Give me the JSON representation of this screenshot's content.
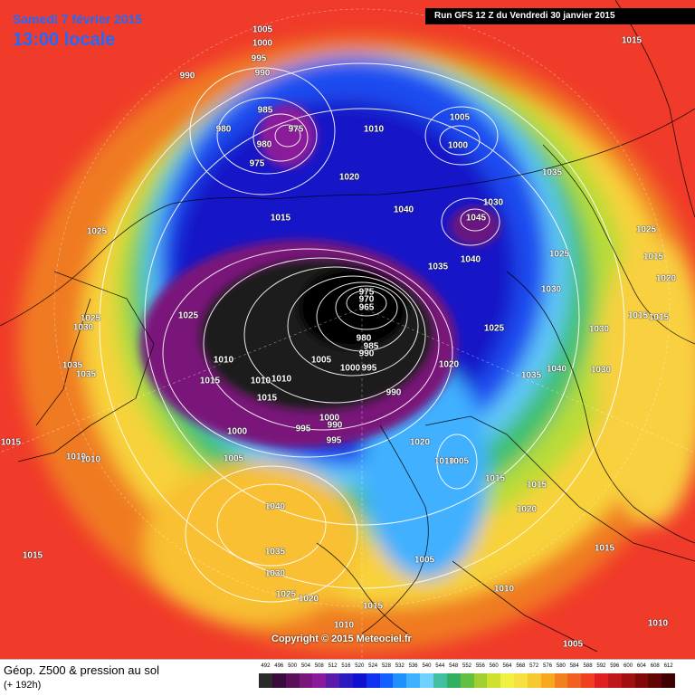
{
  "header": {
    "date": "Samedi 7 février 2015",
    "time": "13:00 locale",
    "run": "Run GFS 12 Z du Vendredi 30 janvier 2015"
  },
  "legend": {
    "title": "Géop. Z500 & pression au sol",
    "subtitle": "(+ 192h)",
    "ticks": [
      "492",
      "496",
      "500",
      "504",
      "508",
      "512",
      "516",
      "520",
      "524",
      "528",
      "532",
      "536",
      "540",
      "544",
      "548",
      "552",
      "556",
      "560",
      "564",
      "568",
      "572",
      "576",
      "580",
      "584",
      "588",
      "592",
      "596",
      "600",
      "604",
      "608",
      "612"
    ],
    "colors": [
      "#2a2a2a",
      "#3a0a3a",
      "#5a0f5a",
      "#7a157a",
      "#8a1a9a",
      "#5b1aa8",
      "#2a1ac0",
      "#1010d0",
      "#1030f0",
      "#1060ff",
      "#2090ff",
      "#40b0ff",
      "#70d0ff",
      "#40c0a0",
      "#30b060",
      "#60c040",
      "#a0d030",
      "#d0e030",
      "#f0f040",
      "#f8e040",
      "#f8c830",
      "#f8a820",
      "#f08020",
      "#f06020",
      "#f04020",
      "#e02020",
      "#c01818",
      "#a01010",
      "#800808",
      "#600404",
      "#400000"
    ]
  },
  "copyright": "Copyright © 2015 Meteociel.fr",
  "pressure_labels": [
    {
      "value": "1005",
      "pos": [
        290,
        33
      ]
    },
    {
      "value": "1000",
      "pos": [
        290,
        48
      ]
    },
    {
      "value": "995",
      "pos": [
        286,
        65
      ]
    },
    {
      "value": "990",
      "pos": [
        207,
        84
      ]
    },
    {
      "value": "990",
      "pos": [
        290,
        81
      ]
    },
    {
      "value": "985",
      "pos": [
        293,
        122
      ]
    },
    {
      "value": "980",
      "pos": [
        247,
        143
      ]
    },
    {
      "value": "975",
      "pos": [
        327,
        143
      ]
    },
    {
      "value": "980",
      "pos": [
        292,
        160
      ]
    },
    {
      "value": "975",
      "pos": [
        284,
        181
      ]
    },
    {
      "value": "1010",
      "pos": [
        413,
        143
      ]
    },
    {
      "value": "1005",
      "pos": [
        508,
        130
      ]
    },
    {
      "value": "1000",
      "pos": [
        506,
        161
      ]
    },
    {
      "value": "1015",
      "pos": [
        698,
        45
      ]
    },
    {
      "value": "1035",
      "pos": [
        610,
        191
      ]
    },
    {
      "value": "1020",
      "pos": [
        386,
        196
      ]
    },
    {
      "value": "1040",
      "pos": [
        446,
        232
      ]
    },
    {
      "value": "1030",
      "pos": [
        545,
        224
      ]
    },
    {
      "value": "1045",
      "pos": [
        526,
        241
      ]
    },
    {
      "value": "1040",
      "pos": [
        520,
        287
      ]
    },
    {
      "value": "1035",
      "pos": [
        484,
        295
      ]
    },
    {
      "value": "1015",
      "pos": [
        310,
        241
      ]
    },
    {
      "value": "1025",
      "pos": [
        107,
        256
      ]
    },
    {
      "value": "1025",
      "pos": [
        618,
        281
      ]
    },
    {
      "value": "1025",
      "pos": [
        714,
        254
      ]
    },
    {
      "value": "1015",
      "pos": [
        722,
        284
      ]
    },
    {
      "value": "1020",
      "pos": [
        736,
        308
      ]
    },
    {
      "value": "1030",
      "pos": [
        609,
        320
      ]
    },
    {
      "value": "975",
      "pos": [
        405,
        323
      ]
    },
    {
      "value": "970",
      "pos": [
        405,
        331
      ]
    },
    {
      "value": "965",
      "pos": [
        405,
        340
      ]
    },
    {
      "value": "1025",
      "pos": [
        208,
        349
      ]
    },
    {
      "value": "1025",
      "pos": [
        100,
        352
      ]
    },
    {
      "value": "1030",
      "pos": [
        92,
        362
      ]
    },
    {
      "value": "1015",
      "pos": [
        705,
        349
      ]
    },
    {
      "value": "1015",
      "pos": [
        728,
        351
      ]
    },
    {
      "value": "1030",
      "pos": [
        662,
        364
      ]
    },
    {
      "value": "1025",
      "pos": [
        546,
        363
      ]
    },
    {
      "value": "980",
      "pos": [
        402,
        374
      ]
    },
    {
      "value": "985",
      "pos": [
        410,
        383
      ]
    },
    {
      "value": "990",
      "pos": [
        405,
        391
      ]
    },
    {
      "value": "1005",
      "pos": [
        355,
        398
      ]
    },
    {
      "value": "1010",
      "pos": [
        247,
        398
      ]
    },
    {
      "value": "1000",
      "pos": [
        387,
        407
      ]
    },
    {
      "value": "995",
      "pos": [
        408,
        407
      ]
    },
    {
      "value": "1020",
      "pos": [
        496,
        403
      ]
    },
    {
      "value": "1035",
      "pos": [
        80,
        404
      ]
    },
    {
      "value": "1035",
      "pos": [
        95,
        414
      ]
    },
    {
      "value": "1040",
      "pos": [
        615,
        408
      ]
    },
    {
      "value": "1030",
      "pos": [
        664,
        409
      ]
    },
    {
      "value": "1035",
      "pos": [
        587,
        415
      ]
    },
    {
      "value": "1015",
      "pos": [
        232,
        421
      ]
    },
    {
      "value": "1010",
      "pos": [
        288,
        421
      ]
    },
    {
      "value": "1010",
      "pos": [
        311,
        419
      ]
    },
    {
      "value": "1015",
      "pos": [
        295,
        440
      ]
    },
    {
      "value": "990",
      "pos": [
        435,
        434
      ]
    },
    {
      "value": "1000",
      "pos": [
        364,
        462
      ]
    },
    {
      "value": "990",
      "pos": [
        370,
        470
      ]
    },
    {
      "value": "995",
      "pos": [
        335,
        474
      ]
    },
    {
      "value": "995",
      "pos": [
        369,
        487
      ]
    },
    {
      "value": "1000",
      "pos": [
        262,
        477
      ]
    },
    {
      "value": "1020",
      "pos": [
        464,
        489
      ]
    },
    {
      "value": "1015",
      "pos": [
        12,
        489
      ]
    },
    {
      "value": "1010",
      "pos": [
        84,
        505
      ]
    },
    {
      "value": "1010",
      "pos": [
        100,
        508
      ]
    },
    {
      "value": "1005",
      "pos": [
        258,
        507
      ]
    },
    {
      "value": "1010",
      "pos": [
        491,
        510
      ]
    },
    {
      "value": "1005",
      "pos": [
        507,
        510
      ]
    },
    {
      "value": "1015",
      "pos": [
        547,
        529
      ]
    },
    {
      "value": "1015",
      "pos": [
        593,
        536
      ]
    },
    {
      "value": "1020",
      "pos": [
        582,
        563
      ]
    },
    {
      "value": "1040",
      "pos": [
        304,
        560
      ]
    },
    {
      "value": "1015",
      "pos": [
        36,
        614
      ]
    },
    {
      "value": "1035",
      "pos": [
        304,
        610
      ]
    },
    {
      "value": "1005",
      "pos": [
        469,
        619
      ]
    },
    {
      "value": "1015",
      "pos": [
        668,
        606
      ]
    },
    {
      "value": "1030",
      "pos": [
        304,
        634
      ]
    },
    {
      "value": "1025",
      "pos": [
        316,
        657
      ]
    },
    {
      "value": "1020",
      "pos": [
        341,
        662
      ]
    },
    {
      "value": "1010",
      "pos": [
        557,
        651
      ]
    },
    {
      "value": "1015",
      "pos": [
        412,
        670
      ]
    },
    {
      "value": "1010",
      "pos": [
        727,
        689
      ]
    },
    {
      "value": "1010",
      "pos": [
        380,
        691
      ]
    },
    {
      "value": "1005",
      "pos": [
        633,
        712
      ]
    }
  ]
}
